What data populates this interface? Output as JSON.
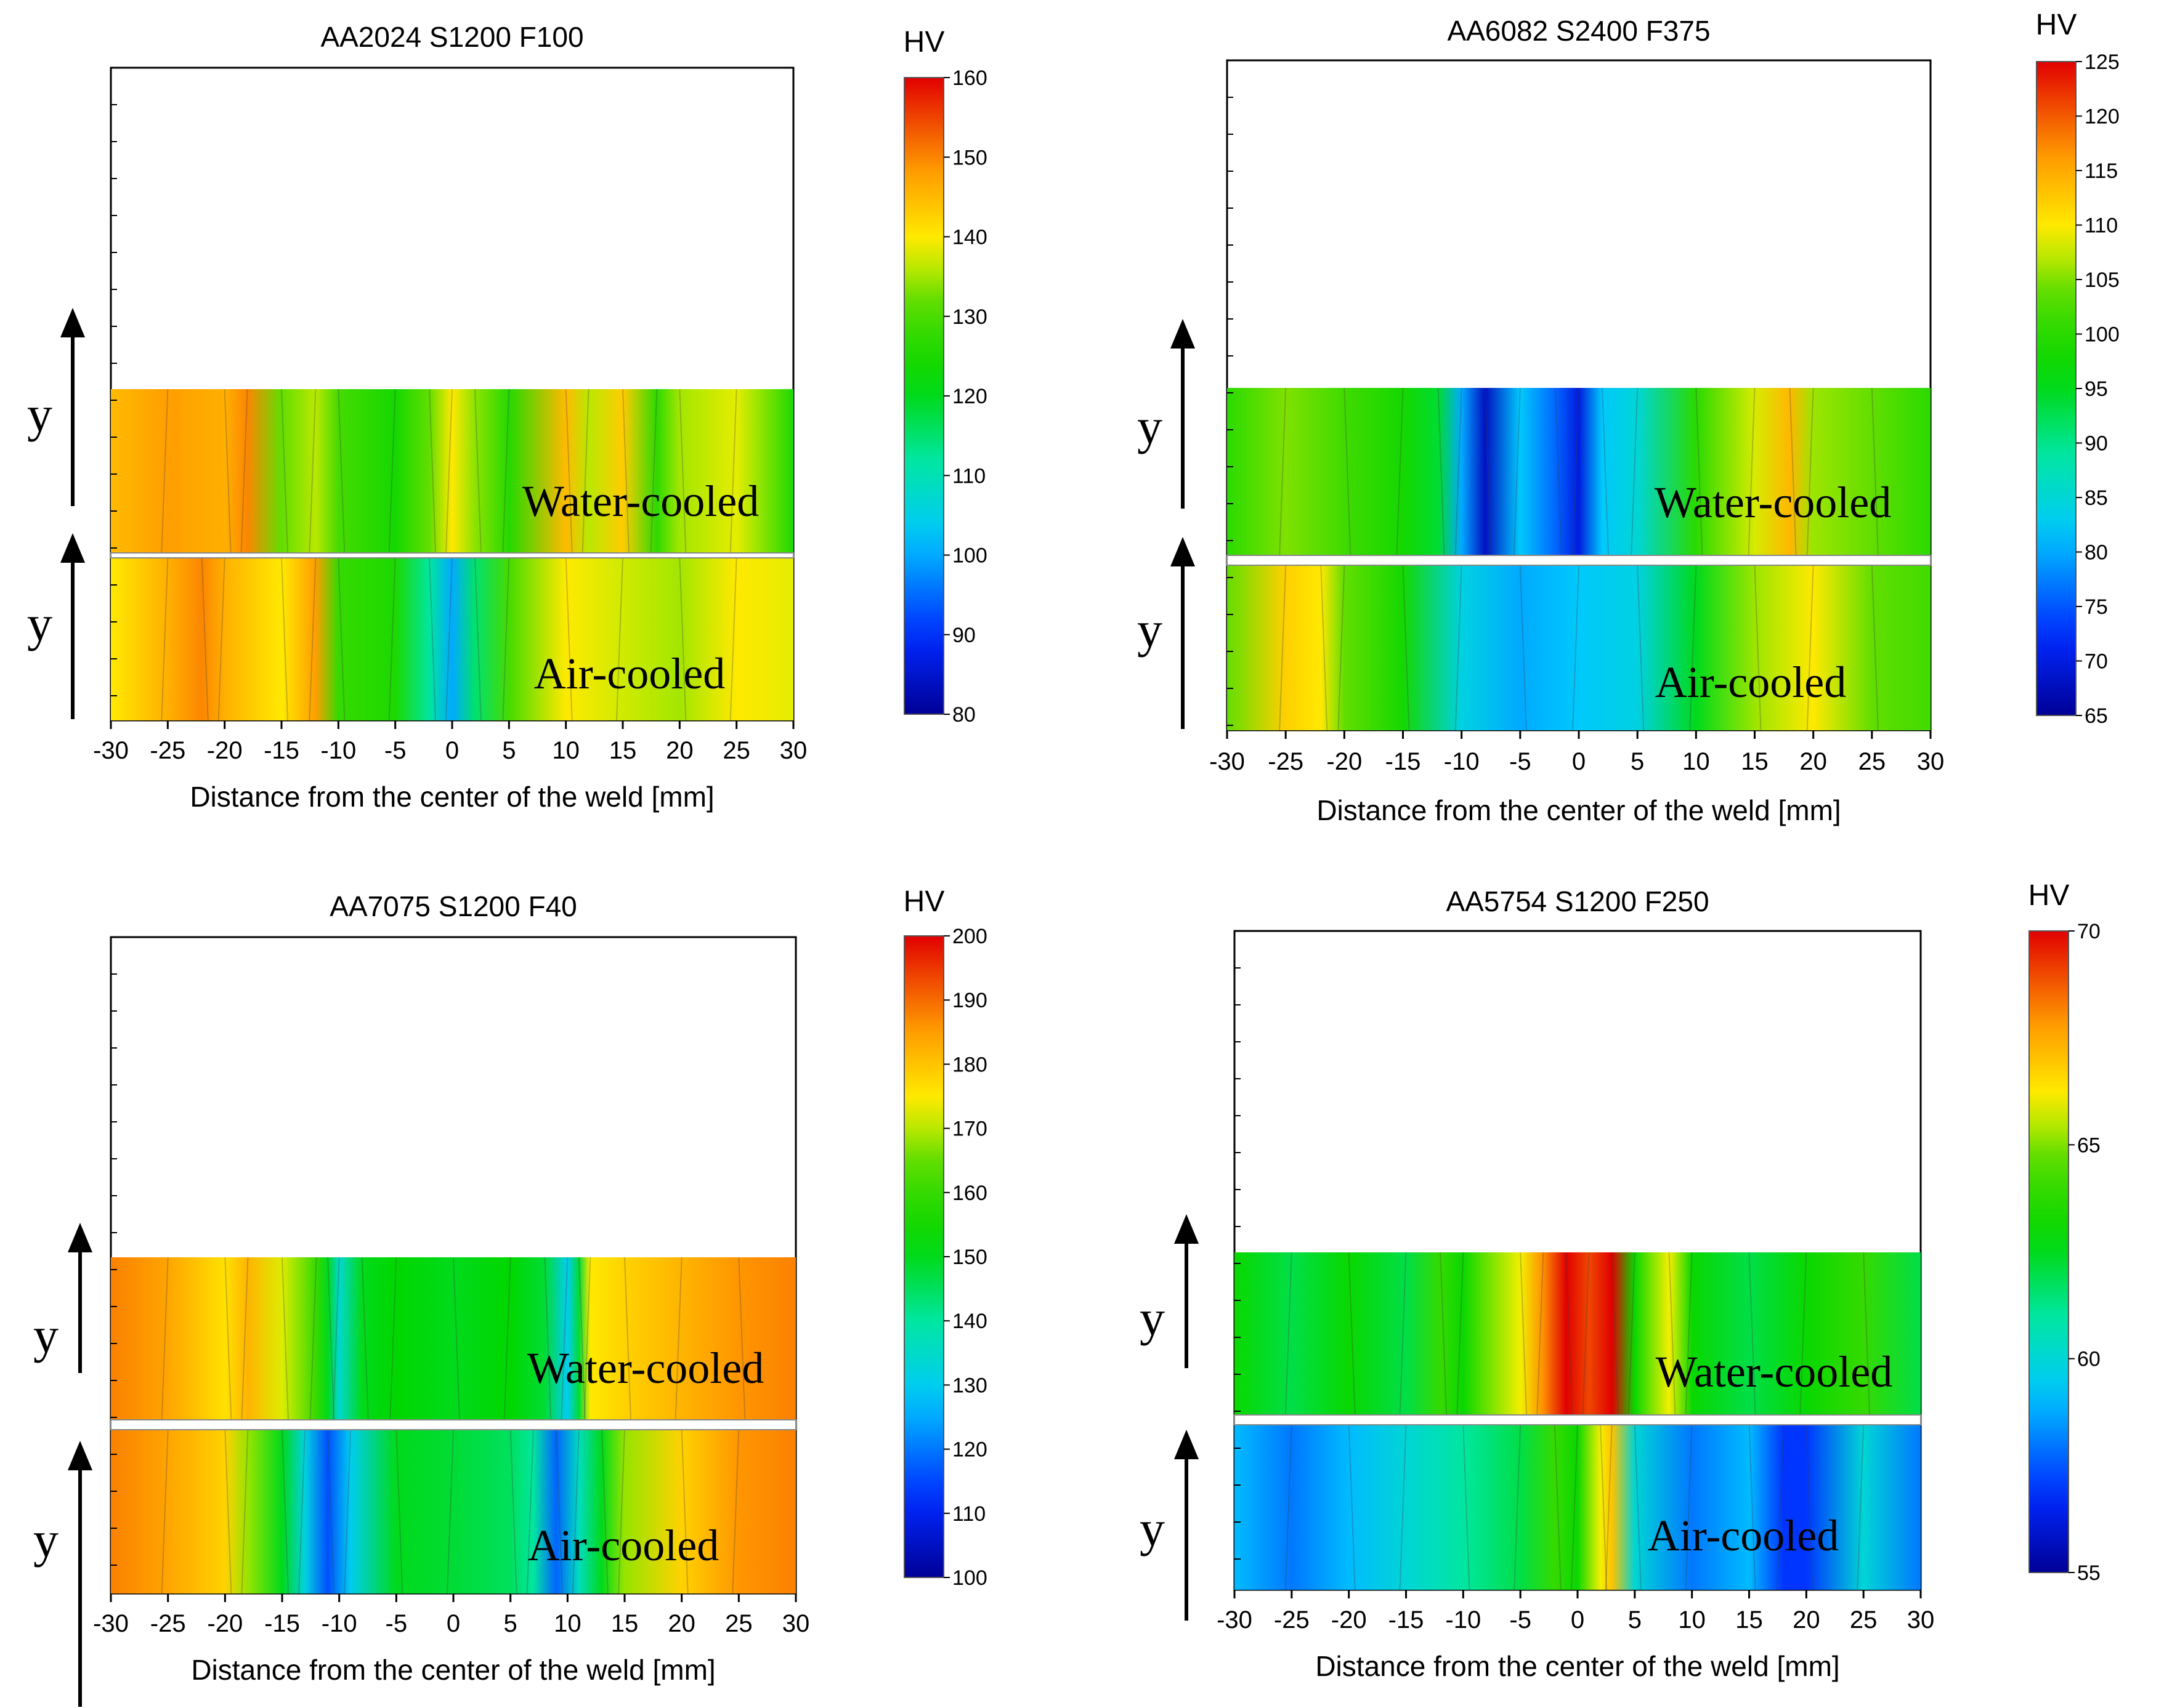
{
  "chart_data": [
    {
      "type": "heatmap",
      "title": "AA2024 S1200 F100",
      "xlabel": "Distance from the center of the weld [mm]",
      "ylabel": "y",
      "xlim": [
        -30,
        30
      ],
      "x_ticks": [
        "-30",
        "-25",
        "-20",
        "-15",
        "-10",
        "-5",
        "0",
        "5",
        "10",
        "15",
        "20",
        "25",
        "30"
      ],
      "colorbar": {
        "label": "HV",
        "range": [
          80,
          160
        ],
        "ticks": [
          "80",
          "90",
          "100",
          "110",
          "120",
          "130",
          "140",
          "150",
          "160"
        ]
      },
      "series": [
        {
          "name": "Water-cooled",
          "x": [
            -30,
            -25,
            -20,
            -18,
            -15,
            -12,
            -10,
            -5,
            -2,
            0,
            2,
            5,
            10,
            12,
            15,
            18,
            20,
            25,
            30
          ],
          "values": [
            145,
            148,
            146,
            150,
            132,
            136,
            130,
            124,
            132,
            140,
            134,
            126,
            145,
            136,
            143,
            127,
            135,
            138,
            125
          ]
        },
        {
          "name": "Air-cooled",
          "x": [
            -30,
            -25,
            -22,
            -20,
            -15,
            -12,
            -10,
            -5,
            -2,
            0,
            2,
            5,
            10,
            15,
            20,
            25,
            30
          ],
          "values": [
            140,
            146,
            150,
            146,
            140,
            148,
            128,
            125,
            112,
            100,
            115,
            130,
            140,
            137,
            135,
            140,
            138
          ]
        }
      ]
    },
    {
      "type": "heatmap",
      "title": "AA6082 S2400 F375",
      "xlabel": "Distance from the center of the weld [mm]",
      "ylabel": "y",
      "xlim": [
        -30,
        30
      ],
      "x_ticks": [
        "-30",
        "-25",
        "-20",
        "-15",
        "-10",
        "-5",
        "0",
        "5",
        "10",
        "15",
        "20",
        "25",
        "30"
      ],
      "colorbar": {
        "label": "HV",
        "range": [
          65,
          125
        ],
        "ticks": [
          "65",
          "70",
          "75",
          "80",
          "85",
          "90",
          "95",
          "100",
          "105",
          "110",
          "115",
          "120",
          "125"
        ]
      },
      "series": [
        {
          "name": "Water-cooled",
          "x": [
            -30,
            -25,
            -20,
            -15,
            -12,
            -10,
            -8,
            -5,
            -2,
            0,
            2,
            5,
            10,
            15,
            18,
            20,
            25,
            30
          ],
          "values": [
            100,
            105,
            102,
            98,
            94,
            80,
            68,
            82,
            76,
            70,
            82,
            85,
            100,
            108,
            114,
            106,
            104,
            100
          ]
        },
        {
          "name": "Air-cooled",
          "x": [
            -30,
            -25,
            -22,
            -20,
            -15,
            -10,
            -5,
            0,
            5,
            10,
            15,
            20,
            25,
            30
          ],
          "values": [
            104,
            112,
            110,
            104,
            98,
            84,
            80,
            82,
            84,
            95,
            106,
            110,
            104,
            102
          ]
        }
      ]
    },
    {
      "type": "heatmap",
      "title": "AA7075 S1200 F40",
      "xlabel": "Distance from the center of the weld [mm]",
      "ylabel": "y",
      "xlim": [
        -30,
        30
      ],
      "x_ticks": [
        "-30",
        "-25",
        "-20",
        "-15",
        "-10",
        "-5",
        "0",
        "5",
        "10",
        "15",
        "20",
        "25",
        "30"
      ],
      "colorbar": {
        "label": "HV",
        "range": [
          100,
          200
        ],
        "ticks": [
          "100",
          "110",
          "120",
          "130",
          "140",
          "150",
          "160",
          "170",
          "180",
          "190",
          "200"
        ]
      },
      "series": [
        {
          "name": "Water-cooled",
          "x": [
            -30,
            -25,
            -20,
            -18,
            -15,
            -12,
            -11,
            -10,
            -8,
            -5,
            0,
            5,
            8,
            10,
            11,
            12,
            15,
            20,
            25,
            30
          ],
          "values": [
            188,
            184,
            176,
            182,
            172,
            160,
            150,
            134,
            150,
            152,
            150,
            152,
            148,
            130,
            148,
            175,
            178,
            182,
            186,
            188
          ]
        },
        {
          "name": "Air-cooled",
          "x": [
            -30,
            -25,
            -20,
            -18,
            -15,
            -13,
            -11,
            -9,
            -5,
            0,
            5,
            7,
            9,
            11,
            13,
            15,
            20,
            25,
            30
          ],
          "values": [
            188,
            184,
            178,
            168,
            150,
            132,
            116,
            130,
            150,
            148,
            145,
            140,
            118,
            136,
            150,
            168,
            178,
            186,
            188
          ]
        }
      ]
    },
    {
      "type": "heatmap",
      "title": "AA5754 S1200 F250",
      "xlabel": "Distance from the center of the weld [mm]",
      "ylabel": "y",
      "xlim": [
        -30,
        30
      ],
      "x_ticks": [
        "-30",
        "-25",
        "-20",
        "-15",
        "-10",
        "-5",
        "0",
        "5",
        "10",
        "15",
        "20",
        "25",
        "30"
      ],
      "colorbar": {
        "label": "HV",
        "range": [
          55,
          70
        ],
        "ticks": [
          "55",
          "60",
          "65",
          "70"
        ]
      },
      "series": [
        {
          "name": "Water-cooled",
          "x": [
            -30,
            -25,
            -20,
            -15,
            -12,
            -10,
            -5,
            -3,
            -1,
            1,
            3,
            5,
            8,
            10,
            15,
            20,
            25,
            30
          ],
          "values": [
            63,
            62,
            63,
            62,
            64,
            63,
            66,
            68,
            70,
            69,
            70,
            63,
            66,
            63,
            62,
            63,
            64,
            62
          ]
        },
        {
          "name": "Air-cooled",
          "x": [
            -30,
            -25,
            -20,
            -15,
            -10,
            -5,
            -2,
            0,
            2,
            3,
            5,
            10,
            15,
            18,
            20,
            25,
            30
          ],
          "values": [
            59,
            58,
            59,
            60,
            61,
            62,
            64,
            63,
            66,
            67,
            60,
            58,
            59,
            57,
            57,
            60,
            58
          ]
        }
      ]
    }
  ]
}
